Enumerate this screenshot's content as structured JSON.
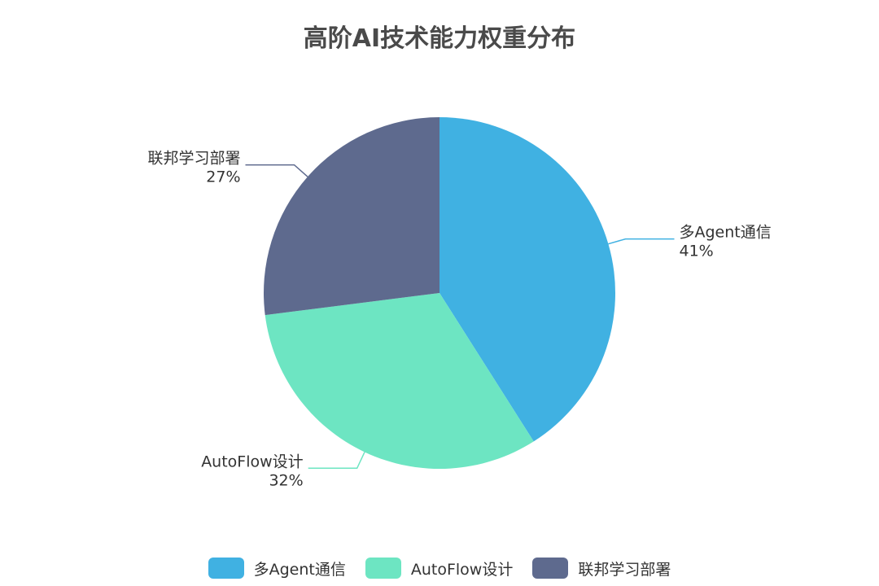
{
  "chart_data": {
    "type": "pie",
    "title": "高阶AI技术能力权重分布",
    "slices": [
      {
        "name": "多Agent通信",
        "value": 41,
        "label": "41%",
        "color": "#40b1e2"
      },
      {
        "name": "AutoFlow设计",
        "value": 32,
        "label": "32%",
        "color": "#6de5c2"
      },
      {
        "name": "联邦学习部署",
        "value": 27,
        "label": "27%",
        "color": "#5e6a8e"
      }
    ],
    "legend": {
      "placement": "bottom"
    }
  }
}
